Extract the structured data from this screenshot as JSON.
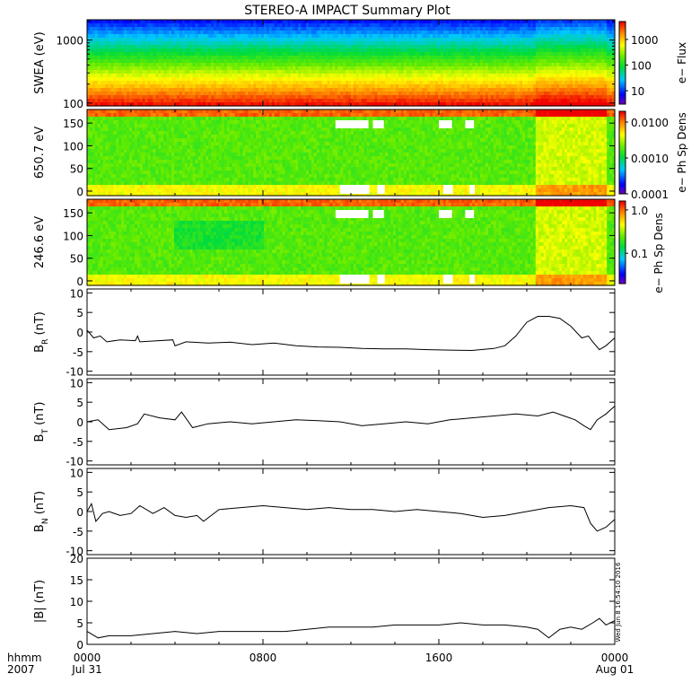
{
  "title": "STEREO-A IMPACT Summary Plot",
  "stamp": "Wed Jun  8 16:54:10 2016",
  "time_axis": {
    "row1_label": "hhmm",
    "row2_label": "2007",
    "ticks": [
      {
        "t": 0,
        "label": "0000",
        "date": "Jul 31"
      },
      {
        "t": 8,
        "label": "0800",
        "date": ""
      },
      {
        "t": 16,
        "label": "1600",
        "date": ""
      },
      {
        "t": 24,
        "label": "0000",
        "date": "Aug 01"
      }
    ],
    "xlim_hours": [
      0,
      24
    ]
  },
  "spectrogram_panels": [
    {
      "id": "swea",
      "ylabel": "SWEA (eV)",
      "ylog": true,
      "ylim": [
        90,
        2100
      ],
      "yticks": [
        100,
        1000
      ],
      "ytick_labels": [
        "100",
        "1000"
      ],
      "colorbar": {
        "label": "e− Flux",
        "log": true,
        "range": [
          3,
          5000
        ],
        "ticks": [
          10,
          100,
          1000
        ],
        "tick_labels": [
          "10",
          "100",
          "1000"
        ]
      }
    },
    {
      "id": "pad650",
      "ylabel": "650.7 eV",
      "ylog": false,
      "ylim": [
        -10,
        180
      ],
      "yticks": [
        0,
        50,
        100,
        150
      ],
      "ytick_labels": [
        "0",
        "50",
        "100",
        "150"
      ],
      "colorbar": {
        "label": "e− Ph Sp Dens",
        "log": true,
        "range": [
          0.0001,
          0.02
        ],
        "ticks": [
          0.0001,
          0.001,
          0.01
        ],
        "tick_labels": [
          "0.0001",
          "0.0010",
          "0.0100"
        ]
      }
    },
    {
      "id": "pad246",
      "ylabel": "246.6 eV",
      "ylog": false,
      "ylim": [
        -10,
        180
      ],
      "yticks": [
        0,
        50,
        100,
        150
      ],
      "ytick_labels": [
        "0",
        "50",
        "100",
        "150"
      ],
      "colorbar": {
        "label": "e− Ph Sp Dens",
        "log": true,
        "range": [
          0.02,
          1.6
        ],
        "ticks": [
          0.1,
          1.0
        ],
        "tick_labels": [
          "0.1",
          "1.0"
        ]
      }
    }
  ],
  "chart_data": [
    {
      "type": "line",
      "panel": "br",
      "ylabel_main": "B",
      "ylabel_sub": "R",
      "ylabel_unit": " (nT)",
      "ylim": [
        -11,
        11
      ],
      "yticks": [
        -10,
        -5,
        0,
        5,
        10
      ],
      "x": [
        0,
        0.3,
        0.6,
        0.9,
        1.5,
        2.2,
        2.3,
        2.4,
        3.0,
        3.9,
        4.0,
        4.5,
        5.5,
        6.5,
        7.5,
        8.5,
        9.5,
        10.5,
        11.5,
        12.5,
        13.5,
        14.5,
        15.5,
        16.5,
        17.5,
        18.5,
        19.0,
        19.5,
        20.0,
        20.5,
        21.0,
        21.5,
        22.0,
        22.5,
        22.8,
        23.0,
        23.3,
        23.6,
        24.0
      ],
      "y": [
        0.5,
        -1.5,
        -1.0,
        -2.5,
        -2.0,
        -2.2,
        -1.0,
        -2.5,
        -2.3,
        -2.0,
        -3.5,
        -2.5,
        -2.8,
        -2.6,
        -3.2,
        -2.8,
        -3.5,
        -3.8,
        -3.9,
        -4.2,
        -4.3,
        -4.3,
        -4.5,
        -4.6,
        -4.7,
        -4.2,
        -3.5,
        -1.0,
        2.5,
        4.0,
        4.0,
        3.5,
        1.5,
        -1.5,
        -1.0,
        -2.5,
        -4.5,
        -3.5,
        -1.5
      ]
    },
    {
      "type": "line",
      "panel": "bt",
      "ylabel_main": "B",
      "ylabel_sub": "T",
      "ylabel_unit": " (nT)",
      "ylim": [
        -11,
        11
      ],
      "yticks": [
        -10,
        -5,
        0,
        5,
        10
      ],
      "x": [
        0,
        0.5,
        1.0,
        1.8,
        2.3,
        2.6,
        3.3,
        4.0,
        4.3,
        4.8,
        5.5,
        6.5,
        7.5,
        8.5,
        9.5,
        10.5,
        11.5,
        12.5,
        13.5,
        14.5,
        15.5,
        16.5,
        17.5,
        18.5,
        19.5,
        20.5,
        21.2,
        21.7,
        22.2,
        22.6,
        22.9,
        23.2,
        23.6,
        24.0
      ],
      "y": [
        0.0,
        0.5,
        -2.0,
        -1.5,
        -0.5,
        2.0,
        1.0,
        0.5,
        2.5,
        -1.5,
        -0.5,
        0.0,
        -0.5,
        0.0,
        0.5,
        0.3,
        0.0,
        -1.0,
        -0.5,
        0.0,
        -0.5,
        0.5,
        1.0,
        1.5,
        2.0,
        1.5,
        2.5,
        1.5,
        0.5,
        -1.0,
        -2.0,
        0.5,
        2.0,
        4.0
      ]
    },
    {
      "type": "line",
      "panel": "bn",
      "ylabel_main": "B",
      "ylabel_sub": "N",
      "ylabel_unit": " (nT)",
      "ylim": [
        -11,
        11
      ],
      "yticks": [
        -10,
        -5,
        0,
        5,
        10
      ],
      "x": [
        0,
        0.2,
        0.4,
        0.7,
        1.0,
        1.5,
        2.0,
        2.4,
        3.0,
        3.5,
        4.0,
        4.5,
        5.0,
        5.3,
        6.0,
        7.0,
        8.0,
        9.0,
        10.0,
        11.0,
        12.0,
        13.0,
        14.0,
        15.0,
        16.0,
        17.0,
        17.5,
        18.0,
        19.0,
        20.0,
        21.0,
        22.0,
        22.6,
        22.9,
        23.2,
        23.6,
        24.0
      ],
      "y": [
        0.0,
        2.0,
        -2.5,
        -0.5,
        0.0,
        -1.0,
        -0.5,
        1.5,
        -0.5,
        1.0,
        -1.0,
        -1.5,
        -1.0,
        -2.5,
        0.5,
        1.0,
        1.5,
        1.0,
        0.5,
        1.0,
        0.5,
        0.5,
        0.0,
        0.5,
        0.0,
        -0.5,
        -1.0,
        -1.5,
        -1.0,
        0.0,
        1.0,
        1.5,
        1.0,
        -3.0,
        -5.0,
        -4.0,
        -2.0
      ]
    },
    {
      "type": "line",
      "panel": "bmag",
      "ylabel_main": "|B| (nT)",
      "ylabel_sub": "",
      "ylabel_unit": "",
      "ylim": [
        0,
        20
      ],
      "yticks": [
        0,
        5,
        10,
        15,
        20
      ],
      "x": [
        0,
        0.5,
        1.0,
        2.0,
        3.0,
        4.0,
        5.0,
        6.0,
        7.0,
        8.0,
        9.0,
        10.0,
        11.0,
        12.0,
        13.0,
        14.0,
        15.0,
        16.0,
        17.0,
        18.0,
        19.0,
        20.0,
        20.5,
        21.0,
        21.5,
        22.0,
        22.5,
        23.0,
        23.3,
        23.6,
        24.0
      ],
      "y": [
        3.0,
        1.5,
        2.0,
        2.0,
        2.5,
        3.0,
        2.5,
        3.0,
        3.0,
        3.0,
        3.0,
        3.5,
        4.0,
        4.0,
        4.0,
        4.5,
        4.5,
        4.5,
        5.0,
        4.5,
        4.5,
        4.0,
        3.5,
        1.5,
        3.5,
        4.0,
        3.5,
        5.0,
        6.0,
        4.5,
        5.5
      ]
    }
  ]
}
